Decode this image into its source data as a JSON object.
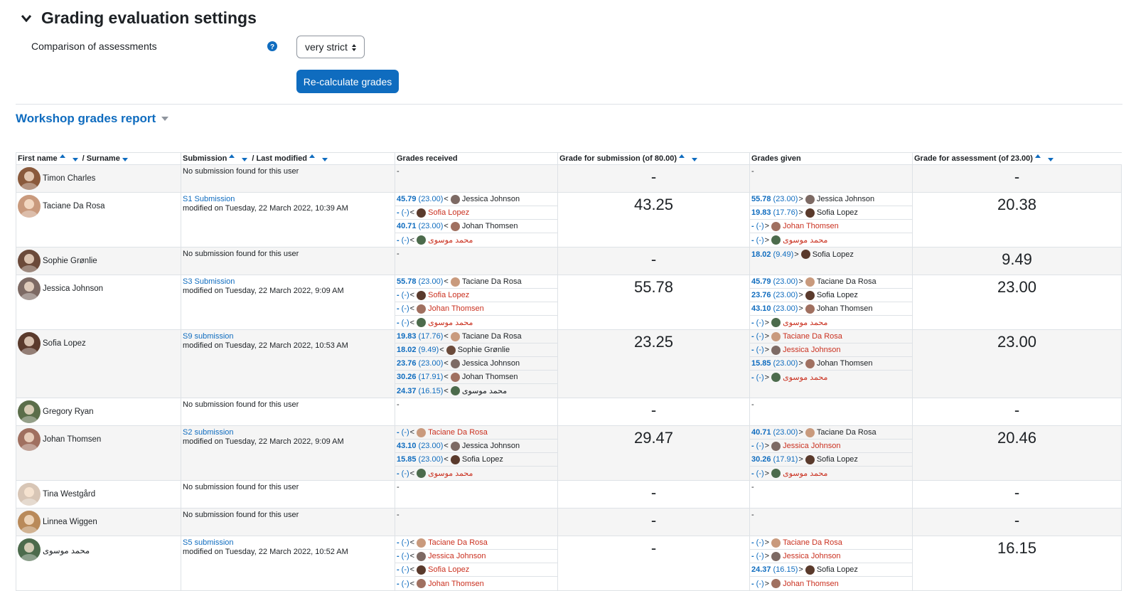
{
  "section": {
    "title": "Grading evaluation settings"
  },
  "settings": {
    "comparison_label": "Comparison of assessments",
    "comparison_value": "very strict",
    "recalculate_label": "Re-calculate grades"
  },
  "report": {
    "title": "Workshop grades report",
    "headers": {
      "first_name": "First name",
      "surname": "/ Surname",
      "submission": "Submission",
      "last_modified": "/ Last modified",
      "grades_received": "Grades received",
      "grade_submission": "Grade for submission (of 80.00)",
      "grades_given": "Grades given",
      "grade_assessment": "Grade for assessment (of 23.00)"
    },
    "rows": [
      {
        "name": "Timon Charles",
        "avatar_color": "#8a5a3c",
        "submission_title": "",
        "submission_modified": "No submission found for this user",
        "received": [],
        "received_empty": "-",
        "grade_submission": "-",
        "given": [],
        "given_empty": "-",
        "grade_assessment": "-"
      },
      {
        "name": "Taciane Da Rosa",
        "avatar_color": "#c99a7d",
        "submission_title": "S1 Submission",
        "submission_modified": "modified on Tuesday, 22 March 2022, 10:39 AM",
        "received": [
          {
            "grade": "45.79",
            "weight": "(23.00)",
            "sep": "<",
            "name": "Jessica Johnson",
            "red": false,
            "color": "#7d6a64"
          },
          {
            "grade": "-",
            "weight": "(-)",
            "sep": "<",
            "name": "Sofia Lopez",
            "red": true,
            "color": "#5a3a2c"
          },
          {
            "grade": "40.71",
            "weight": "(23.00)",
            "sep": "<",
            "name": "Johan Thomsen",
            "red": false,
            "color": "#a07060"
          },
          {
            "grade": "-",
            "weight": "(-)",
            "sep": "<",
            "name": "محمد موسوی",
            "red": true,
            "color": "#4c6b4c",
            "rtl": true
          }
        ],
        "grade_submission": "43.25",
        "given": [
          {
            "grade": "55.78",
            "weight": "(23.00)",
            "sep": ">",
            "name": "Jessica Johnson",
            "red": false,
            "color": "#7d6a64"
          },
          {
            "grade": "19.83",
            "weight": "(17.76)",
            "sep": ">",
            "name": "Sofia Lopez",
            "red": false,
            "color": "#5a3a2c"
          },
          {
            "grade": "-",
            "weight": "(-)",
            "sep": ">",
            "name": "Johan Thomsen",
            "red": true,
            "color": "#a07060"
          },
          {
            "grade": "-",
            "weight": "(-)",
            "sep": ">",
            "name": "محمد موسوی",
            "red": true,
            "color": "#4c6b4c",
            "rtl": true
          }
        ],
        "grade_assessment": "20.38"
      },
      {
        "name": "Sophie Grønlie",
        "avatar_color": "#6b4a3a",
        "submission_title": "",
        "submission_modified": "No submission found for this user",
        "received": [],
        "received_empty": "-",
        "grade_submission": "-",
        "given": [
          {
            "grade": "18.02",
            "weight": "(9.49)",
            "sep": ">",
            "name": "Sofia Lopez",
            "red": false,
            "color": "#5a3a2c"
          }
        ],
        "grade_assessment": "9.49"
      },
      {
        "name": "Jessica Johnson",
        "avatar_color": "#7d6a64",
        "submission_title": "S3 Submission",
        "submission_modified": "modified on Tuesday, 22 March 2022, 9:09 AM",
        "received": [
          {
            "grade": "55.78",
            "weight": "(23.00)",
            "sep": "<",
            "name": "Taciane Da Rosa",
            "red": false,
            "color": "#c99a7d"
          },
          {
            "grade": "-",
            "weight": "(-)",
            "sep": "<",
            "name": "Sofia Lopez",
            "red": true,
            "color": "#5a3a2c"
          },
          {
            "grade": "-",
            "weight": "(-)",
            "sep": "<",
            "name": "Johan Thomsen",
            "red": true,
            "color": "#a07060"
          },
          {
            "grade": "-",
            "weight": "(-)",
            "sep": "<",
            "name": "محمد موسوی",
            "red": true,
            "color": "#4c6b4c",
            "rtl": true
          }
        ],
        "grade_submission": "55.78",
        "given": [
          {
            "grade": "45.79",
            "weight": "(23.00)",
            "sep": ">",
            "name": "Taciane Da Rosa",
            "red": false,
            "color": "#c99a7d"
          },
          {
            "grade": "23.76",
            "weight": "(23.00)",
            "sep": ">",
            "name": "Sofia Lopez",
            "red": false,
            "color": "#5a3a2c"
          },
          {
            "grade": "43.10",
            "weight": "(23.00)",
            "sep": ">",
            "name": "Johan Thomsen",
            "red": false,
            "color": "#a07060"
          },
          {
            "grade": "-",
            "weight": "(-)",
            "sep": ">",
            "name": "محمد موسوی",
            "red": true,
            "color": "#4c6b4c",
            "rtl": true
          }
        ],
        "grade_assessment": "23.00"
      },
      {
        "name": "Sofia Lopez",
        "avatar_color": "#5a3a2c",
        "submission_title": "S9 submission",
        "submission_modified": "modified on Tuesday, 22 March 2022, 10:53 AM",
        "received": [
          {
            "grade": "19.83",
            "weight": "(17.76)",
            "sep": "<",
            "name": "Taciane Da Rosa",
            "red": false,
            "color": "#c99a7d"
          },
          {
            "grade": "18.02",
            "weight": "(9.49)",
            "sep": "<",
            "name": "Sophie Grønlie",
            "red": false,
            "color": "#6b4a3a"
          },
          {
            "grade": "23.76",
            "weight": "(23.00)",
            "sep": "<",
            "name": "Jessica Johnson",
            "red": false,
            "color": "#7d6a64"
          },
          {
            "grade": "30.26",
            "weight": "(17.91)",
            "sep": "<",
            "name": "Johan Thomsen",
            "red": false,
            "color": "#a07060"
          },
          {
            "grade": "24.37",
            "weight": "(16.15)",
            "sep": "<",
            "name": "محمد موسوی",
            "red": false,
            "color": "#4c6b4c",
            "rtl": true
          }
        ],
        "grade_submission": "23.25",
        "given": [
          {
            "grade": "-",
            "weight": "(-)",
            "sep": ">",
            "name": "Taciane Da Rosa",
            "red": true,
            "color": "#c99a7d"
          },
          {
            "grade": "-",
            "weight": "(-)",
            "sep": ">",
            "name": "Jessica Johnson",
            "red": true,
            "color": "#7d6a64"
          },
          {
            "grade": "15.85",
            "weight": "(23.00)",
            "sep": ">",
            "name": "Johan Thomsen",
            "red": false,
            "color": "#a07060"
          },
          {
            "grade": "-",
            "weight": "(-)",
            "sep": ">",
            "name": "محمد موسوی",
            "red": true,
            "color": "#4c6b4c",
            "rtl": true
          }
        ],
        "grade_assessment": "23.00"
      },
      {
        "name": "Gregory Ryan",
        "avatar_color": "#5b6e4a",
        "submission_title": "",
        "submission_modified": "No submission found for this user",
        "received": [],
        "received_empty": "-",
        "grade_submission": "-",
        "given": [],
        "given_empty": "-",
        "grade_assessment": "-"
      },
      {
        "name": "Johan Thomsen",
        "avatar_color": "#a07060",
        "submission_title": "S2 submission",
        "submission_modified": "modified on Tuesday, 22 March 2022, 9:09 AM",
        "received": [
          {
            "grade": "-",
            "weight": "(-)",
            "sep": "<",
            "name": "Taciane Da Rosa",
            "red": true,
            "color": "#c99a7d"
          },
          {
            "grade": "43.10",
            "weight": "(23.00)",
            "sep": "<",
            "name": "Jessica Johnson",
            "red": false,
            "color": "#7d6a64"
          },
          {
            "grade": "15.85",
            "weight": "(23.00)",
            "sep": "<",
            "name": "Sofia Lopez",
            "red": false,
            "color": "#5a3a2c"
          },
          {
            "grade": "-",
            "weight": "(-)",
            "sep": "<",
            "name": "محمد موسوی",
            "red": true,
            "color": "#4c6b4c",
            "rtl": true
          }
        ],
        "grade_submission": "29.47",
        "given": [
          {
            "grade": "40.71",
            "weight": "(23.00)",
            "sep": ">",
            "name": "Taciane Da Rosa",
            "red": false,
            "color": "#c99a7d"
          },
          {
            "grade": "-",
            "weight": "(-)",
            "sep": ">",
            "name": "Jessica Johnson",
            "red": true,
            "color": "#7d6a64"
          },
          {
            "grade": "30.26",
            "weight": "(17.91)",
            "sep": ">",
            "name": "Sofia Lopez",
            "red": false,
            "color": "#5a3a2c"
          },
          {
            "grade": "-",
            "weight": "(-)",
            "sep": ">",
            "name": "محمد موسوی",
            "red": true,
            "color": "#4c6b4c",
            "rtl": true
          }
        ],
        "grade_assessment": "20.46"
      },
      {
        "name": "Tina Westgård",
        "avatar_color": "#d8c6b6",
        "submission_title": "",
        "submission_modified": "No submission found for this user",
        "received": [],
        "received_empty": "-",
        "grade_submission": "-",
        "given": [],
        "given_empty": "-",
        "grade_assessment": "-"
      },
      {
        "name": "Linnea Wiggen",
        "avatar_color": "#b98a5a",
        "submission_title": "",
        "submission_modified": "No submission found for this user",
        "received": [],
        "received_empty": "-",
        "grade_submission": "-",
        "given": [],
        "given_empty": "-",
        "grade_assessment": "-"
      },
      {
        "name": "محمد موسوی",
        "avatar_color": "#4c6b4c",
        "submission_title": "S5 submission",
        "submission_modified": "modified on Tuesday, 22 March 2022, 10:52 AM",
        "received": [
          {
            "grade": "-",
            "weight": "(-)",
            "sep": "<",
            "name": "Taciane Da Rosa",
            "red": true,
            "color": "#c99a7d"
          },
          {
            "grade": "-",
            "weight": "(-)",
            "sep": "<",
            "name": "Jessica Johnson",
            "red": true,
            "color": "#7d6a64"
          },
          {
            "grade": "-",
            "weight": "(-)",
            "sep": "<",
            "name": "Sofia Lopez",
            "red": true,
            "color": "#5a3a2c"
          },
          {
            "grade": "-",
            "weight": "(-)",
            "sep": "<",
            "name": "Johan Thomsen",
            "red": true,
            "color": "#a07060"
          }
        ],
        "grade_submission": "-",
        "given": [
          {
            "grade": "-",
            "weight": "(-)",
            "sep": ">",
            "name": "Taciane Da Rosa",
            "red": true,
            "color": "#c99a7d"
          },
          {
            "grade": "-",
            "weight": "(-)",
            "sep": ">",
            "name": "Jessica Johnson",
            "red": true,
            "color": "#7d6a64"
          },
          {
            "grade": "24.37",
            "weight": "(16.15)",
            "sep": ">",
            "name": "Sofia Lopez",
            "red": false,
            "color": "#5a3a2c"
          },
          {
            "grade": "-",
            "weight": "(-)",
            "sep": ">",
            "name": "Johan Thomsen",
            "red": true,
            "color": "#a07060"
          }
        ],
        "grade_assessment": "16.15"
      }
    ]
  },
  "colors": {
    "link": "#0f6cbf",
    "danger": "#ca3120",
    "help": "#0f6cbf"
  }
}
